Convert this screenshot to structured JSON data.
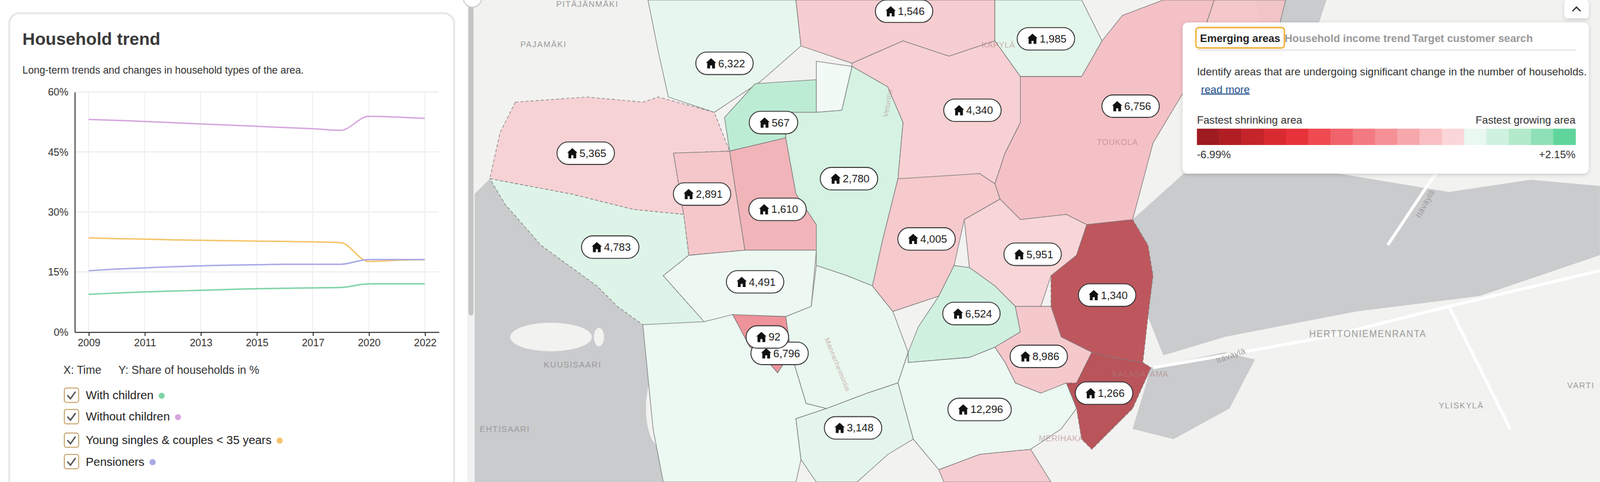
{
  "chart_data": {
    "type": "line",
    "title": "Household trend",
    "subtitle": "Long-term trends and changes in household types of the area.",
    "x_label": "X: Time",
    "y_label": "Y: Share of households in %",
    "categories": [
      "2009",
      null,
      "2011",
      null,
      "2013",
      null,
      "2015",
      null,
      "2017",
      null,
      "2020",
      null,
      "2022"
    ],
    "ylim": [
      0,
      60
    ],
    "yticks": [
      {
        "value": 0,
        "label": "0%"
      },
      {
        "value": 15,
        "label": "15%"
      },
      {
        "value": 30,
        "label": "30%"
      },
      {
        "value": 45,
        "label": "45%"
      },
      {
        "value": 60,
        "label": "60%"
      }
    ],
    "grid": true,
    "series": [
      {
        "name": "With children",
        "color": "#7fd3a8",
        "values": [
          9.4,
          9.7,
          10.0,
          10.2,
          10.4,
          10.6,
          10.8,
          10.9,
          11.0,
          11.1,
          12.0,
          12.0,
          12.0
        ]
      },
      {
        "name": "Without children",
        "color": "#d6a6de",
        "values": [
          53.1,
          52.9,
          52.6,
          52.3,
          52.0,
          51.7,
          51.4,
          51.1,
          50.8,
          50.4,
          53.9,
          53.7,
          53.4
        ]
      },
      {
        "name": "Young singles & couples < 35 years",
        "color": "#f4c46a",
        "values": [
          23.5,
          23.3,
          23.2,
          23.0,
          22.9,
          22.8,
          22.7,
          22.6,
          22.5,
          22.3,
          17.6,
          17.9,
          18.1
        ]
      },
      {
        "name": "Pensioners",
        "color": "#aaa9e6",
        "values": [
          15.3,
          15.7,
          16.0,
          16.3,
          16.5,
          16.7,
          16.8,
          16.9,
          16.9,
          16.9,
          18.1,
          18.1,
          18.1
        ]
      }
    ]
  },
  "map": {
    "regions": [
      {
        "label": "6,322",
        "color": "#e6f7ee"
      },
      {
        "label": "1,546",
        "color": "#f6cacd"
      },
      {
        "label": "1,985",
        "color": "#e2f6eb"
      },
      {
        "label": "567",
        "color": "#b8ebd1"
      },
      {
        "color": "#f2fbf6"
      },
      {
        "label": "2,780",
        "color": "#d2f2e1"
      },
      {
        "label": "5,365",
        "color": "#f7cfd2"
      },
      {
        "label": "2,891",
        "color": "#f5c3c7"
      },
      {
        "label": "1,610",
        "color": "#f1afb4"
      },
      {
        "label": "4,783",
        "color": "#dcf4e7"
      },
      {
        "label": "4,491",
        "color": "#eef9f3"
      },
      {
        "color": "#ecf9f2"
      },
      {
        "label": "6,796",
        "color": "#e8f7ef"
      },
      {
        "label": "92",
        "color": "#ee8b92"
      },
      {
        "label": "4,340",
        "color": "#f7cdd0"
      },
      {
        "label": "6,756",
        "color": "#f4bdc2"
      },
      {
        "label": "4,005",
        "color": "#f6c6ca"
      },
      {
        "label": "5,951",
        "color": "#f8d2d5"
      },
      {
        "label": "6,524",
        "color": "#cdf0de"
      },
      {
        "label": "1,340",
        "color": "#b84a50"
      },
      {
        "label": "8,986",
        "color": "#f5c5c9"
      },
      {
        "label": "1,266",
        "color": "#b3474d"
      },
      {
        "label": "12,296",
        "color": "#ecf9f2"
      },
      {
        "label": "3,148",
        "color": "#e3f6eb"
      },
      {
        "color": "#f5c9cc"
      },
      {
        "color": "#f4c3c7"
      }
    ],
    "place_names": [
      "PITÄJÄNMÄKI",
      "PAJAMÄKI",
      "KUUSISAARI",
      "EHTISAARI",
      "HERTTONIEMENRANTA",
      "YLISKYLÄ",
      "VARTI",
      "Itäväylä",
      "Itäväylä",
      "TOUKOLA",
      "KÄPYLÄ",
      "MERIHAKA",
      "KALASATAMA",
      "Veturitie",
      "Mannerheimintie"
    ],
    "legend": {
      "tabs": [
        "Emerging areas",
        "Household income trend",
        "Target customer search"
      ],
      "description": "Identify areas that are undergoing significant change in the number of households.",
      "link": "read more",
      "low_label": "Fastest shrinking area",
      "high_label": "Fastest growing area",
      "colorbar": {
        "range": [
          -6.99,
          2.15
        ],
        "ticks": [
          {
            "value": -6.99,
            "label": "-6.99%"
          },
          {
            "value": 2.15,
            "label": "+2.15%"
          }
        ],
        "colors": [
          "#9e1b20",
          "#b01e24",
          "#c4242a",
          "#d92a30",
          "#e8323a",
          "#ef4a50",
          "#f0636a",
          "#f27a80",
          "#f59196",
          "#f7a8ac",
          "#f9bfc2",
          "#fbd6d8",
          "#e9f8f0",
          "#cff1df",
          "#b3eacc",
          "#8fe0b6",
          "#5fd59c"
        ]
      }
    }
  }
}
